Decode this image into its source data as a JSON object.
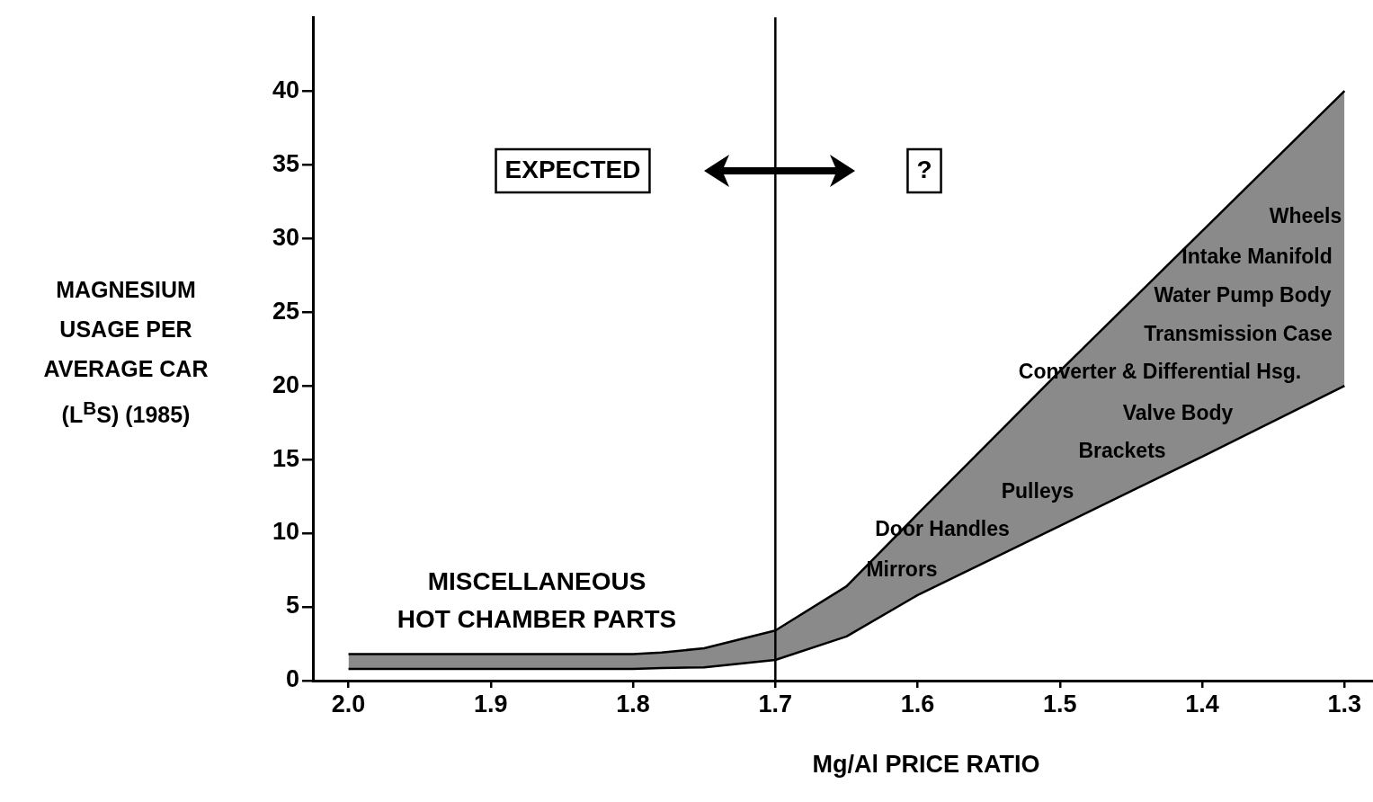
{
  "chart_data": {
    "type": "area",
    "xlabel": "Mg/Al PRICE RATIO",
    "ylabel": "MAGNESIUM USAGE PER AVERAGE CAR (L$^{B}$S) (1985)",
    "x": [
      2.0,
      1.9,
      1.8,
      1.78,
      1.75,
      1.7,
      1.65,
      1.6,
      1.5,
      1.4,
      1.3
    ],
    "series": [
      {
        "type": "line",
        "color": "#000000",
        "values": [
          0.8,
          0.8,
          0.8,
          0.85,
          0.9,
          1.4,
          3.0,
          5.8,
          10.5,
          15.2,
          20.0
        ]
      },
      {
        "color": "#8a8a8a",
        "values": [
          1.8,
          1.8,
          1.8,
          1.9,
          2.2,
          3.4,
          6.4,
          11.3,
          21.0,
          30.5,
          40.0
        ]
      }
    ],
    "xlim": [
      2.025,
      1.28
    ],
    "xticks": [
      {
        "value": 2.0,
        "label": "2.0"
      },
      1.9,
      1.8,
      1.7,
      1.6,
      1.5,
      1.4,
      1.3
    ],
    "ylim": [
      0,
      45
    ],
    "yticks": [
      0,
      5,
      10,
      15,
      20,
      25,
      30,
      35,
      40
    ],
    "grid": false,
    "legend": false,
    "ref_lines": [
      {
        "axis": "x",
        "value": 1.7,
        "color": "#000000"
      }
    ],
    "annotations": [
      "EXPECTED",
      "?",
      "MISCELLANEOUS\nHOT CHAMBER PARTS",
      "Wheels",
      "Intake Manifold",
      "Water Pump Body",
      "Transmission Case",
      "Converter & Differential Hsg.",
      "Valve Body",
      "Brackets",
      "Pulleys",
      "Door Handles",
      "Mirrors"
    ]
  }
}
